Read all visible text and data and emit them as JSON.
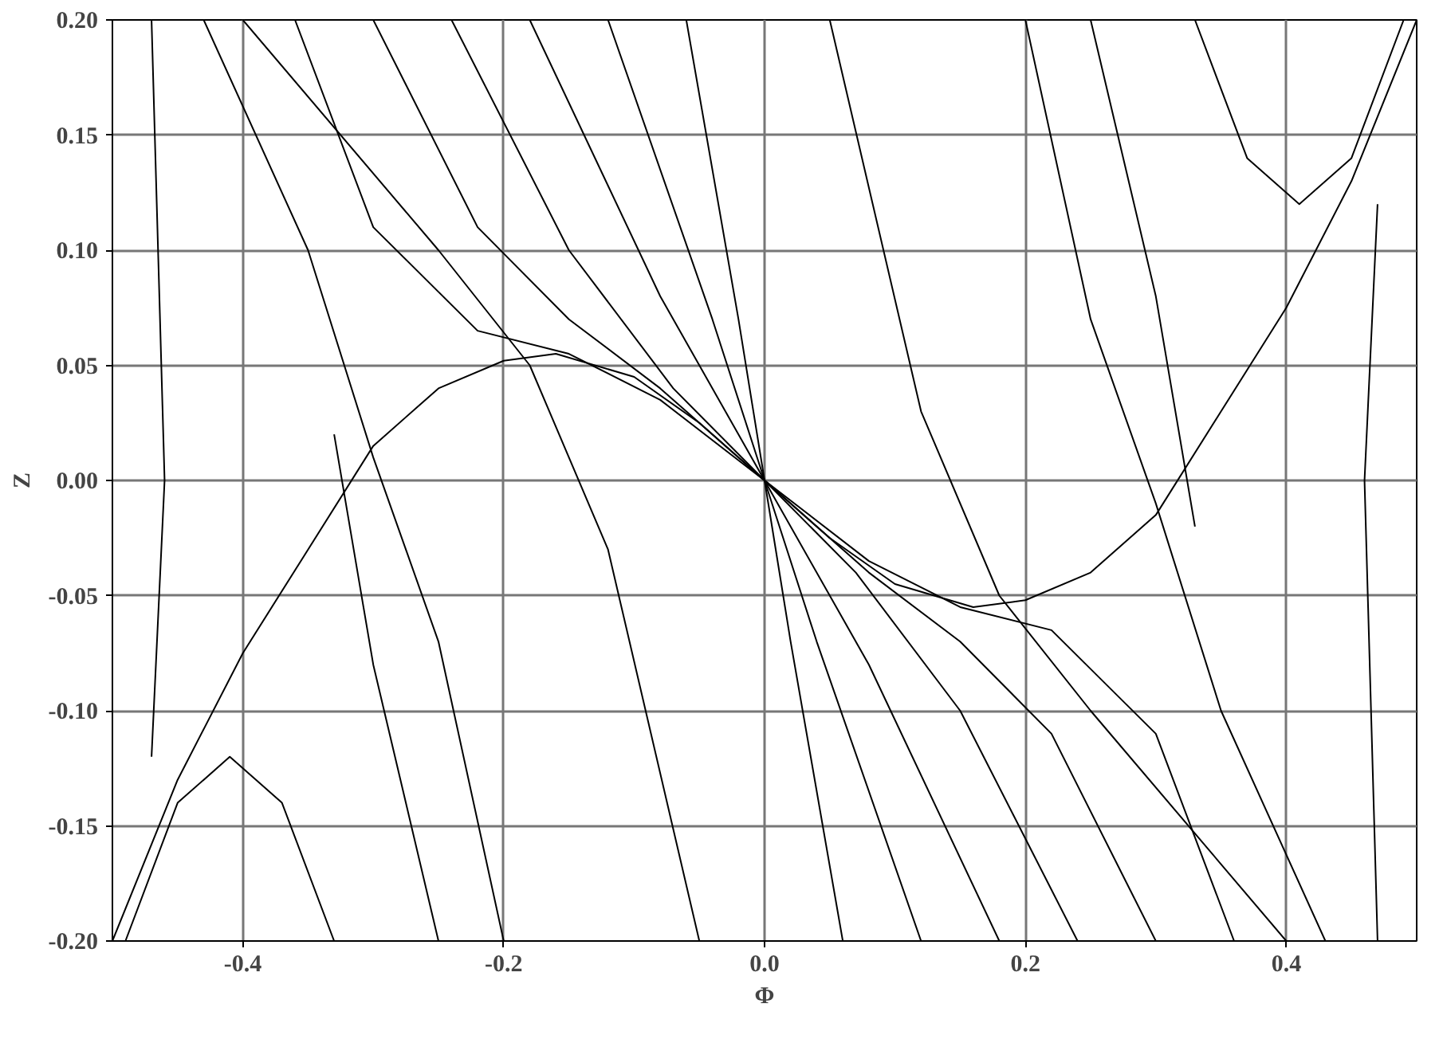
{
  "chart_data": {
    "type": "line",
    "xlabel": "Φ",
    "ylabel": "Z",
    "xlim": [
      -0.5,
      0.5
    ],
    "ylim": [
      -0.2,
      0.2
    ],
    "xticks": [
      {
        "value": -0.4,
        "label": "-0.4"
      },
      {
        "value": -0.2,
        "label": "-0.2"
      },
      {
        "value": 0,
        "label": "0.0"
      },
      {
        "value": 0.2,
        "label": "0.2"
      },
      {
        "value": 0.4,
        "label": "0.4"
      }
    ],
    "yticks": [
      {
        "value": -0.2,
        "label": "-0.20"
      },
      {
        "value": -0.15,
        "label": "-0.15"
      },
      {
        "value": -0.1,
        "label": "-0.10"
      },
      {
        "value": -0.05,
        "label": "-0.05"
      },
      {
        "value": 0,
        "label": "0.00"
      },
      {
        "value": 0.05,
        "label": "0.05"
      },
      {
        "value": 0.1,
        "label": "0.10"
      },
      {
        "value": 0.15,
        "label": "0.15"
      },
      {
        "value": 0.2,
        "label": "0.20"
      }
    ],
    "grid": true,
    "marker": "none",
    "line_style": "solid",
    "series": [
      {
        "color": "#000000",
        "x": [
          -0.5,
          -0.45,
          -0.4,
          -0.35,
          -0.3,
          -0.25,
          -0.2,
          -0.16,
          -0.1,
          -0.05,
          0,
          0.05,
          0.1,
          0.16,
          0.2,
          0.25,
          0.3,
          0.35,
          0.4,
          0.45,
          0.5
        ],
        "values": [
          -0.2,
          -0.13,
          -0.075,
          -0.03,
          0.015,
          0.04,
          0.052,
          0.055,
          0.045,
          0.025,
          0,
          -0.025,
          -0.045,
          -0.055,
          -0.052,
          -0.04,
          -0.015,
          0.03,
          0.075,
          0.13,
          0.2
        ]
      },
      {
        "color": "#000000",
        "x": [
          -0.36,
          -0.3,
          -0.22,
          -0.15,
          -0.08,
          0,
          0.08,
          0.15,
          0.22,
          0.3,
          0.36
        ],
        "values": [
          0.2,
          0.11,
          0.065,
          0.055,
          0.035,
          0,
          -0.035,
          -0.055,
          -0.065,
          -0.11,
          -0.2
        ]
      },
      {
        "color": "#000000",
        "x": [
          -0.3,
          -0.22,
          -0.15,
          -0.08,
          0,
          0.08,
          0.15,
          0.22,
          0.3
        ],
        "values": [
          0.2,
          0.11,
          0.07,
          0.04,
          0,
          -0.04,
          -0.07,
          -0.11,
          -0.2
        ]
      },
      {
        "color": "#000000",
        "x": [
          -0.24,
          -0.15,
          -0.07,
          0,
          0.07,
          0.15,
          0.24
        ],
        "values": [
          0.2,
          0.1,
          0.04,
          0,
          -0.04,
          -0.1,
          -0.2
        ]
      },
      {
        "color": "#000000",
        "x": [
          -0.18,
          -0.08,
          0,
          0.08,
          0.18
        ],
        "values": [
          0.2,
          0.08,
          0,
          -0.08,
          -0.2
        ]
      },
      {
        "color": "#000000",
        "x": [
          -0.12,
          -0.04,
          0,
          0.04,
          0.12
        ],
        "values": [
          0.2,
          0.07,
          0,
          -0.07,
          -0.2
        ]
      },
      {
        "color": "#000000",
        "x": [
          -0.06,
          -0.02,
          0,
          0.02,
          0.06
        ],
        "values": [
          0.2,
          0.07,
          0,
          -0.07,
          -0.2
        ]
      },
      {
        "color": "#000000",
        "x": [
          0.05,
          0.12,
          0.18,
          0.25,
          0.4
        ],
        "values": [
          0.2,
          0.03,
          -0.05,
          -0.1,
          -0.2
        ]
      },
      {
        "color": "#000000",
        "x": [
          -0.05,
          -0.12,
          -0.18,
          -0.25,
          -0.4
        ],
        "values": [
          -0.2,
          -0.03,
          0.05,
          0.1,
          0.2
        ]
      },
      {
        "color": "#000000",
        "x": [
          0.2,
          0.25,
          0.3,
          0.35,
          0.43
        ],
        "values": [
          0.2,
          0.07,
          -0.01,
          -0.1,
          -0.2
        ]
      },
      {
        "color": "#000000",
        "x": [
          -0.2,
          -0.25,
          -0.3,
          -0.35,
          -0.43
        ],
        "values": [
          -0.2,
          -0.07,
          0.01,
          0.1,
          0.2
        ]
      },
      {
        "color": "#000000",
        "x": [
          0.33,
          0.37,
          0.41,
          0.45,
          0.49
        ],
        "values": [
          0.2,
          0.14,
          0.12,
          0.14,
          0.2
        ]
      },
      {
        "color": "#000000",
        "x": [
          -0.33,
          -0.37,
          -0.41,
          -0.45,
          -0.49
        ],
        "values": [
          -0.2,
          -0.14,
          -0.12,
          -0.14,
          -0.2
        ]
      },
      {
        "color": "#000000",
        "x": [
          -0.47,
          -0.46,
          -0.47
        ],
        "values": [
          0.2,
          0.0,
          -0.12
        ]
      },
      {
        "color": "#000000",
        "x": [
          0.47,
          0.46,
          0.47
        ],
        "values": [
          -0.2,
          0.0,
          0.12
        ]
      },
      {
        "color": "#000000",
        "x": [
          -0.33,
          -0.3,
          -0.25
        ],
        "values": [
          0.02,
          -0.08,
          -0.2
        ]
      },
      {
        "color": "#000000",
        "x": [
          0.33,
          0.3,
          0.25
        ],
        "values": [
          -0.02,
          0.08,
          0.2
        ]
      }
    ]
  }
}
